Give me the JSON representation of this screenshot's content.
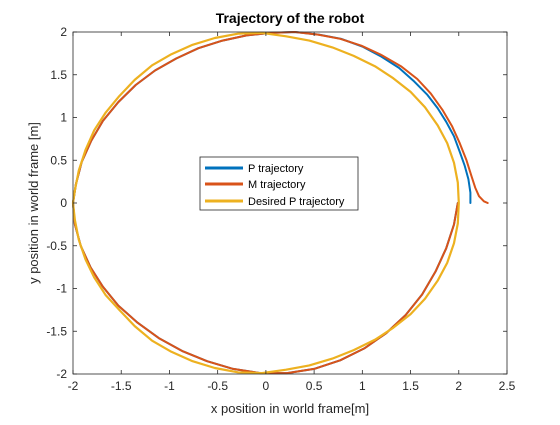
{
  "chart_data": {
    "type": "line",
    "title": "Trajectory of the robot",
    "xlabel": "x position in world frame[m]",
    "ylabel": "y position in world frame [m]",
    "xlim": [
      -2,
      2.5
    ],
    "ylim": [
      -2,
      2
    ],
    "xticks": [
      -2,
      -1.5,
      -1,
      -0.5,
      0,
      0.5,
      1,
      1.5,
      2,
      2.5
    ],
    "yticks": [
      -2,
      -1.5,
      -1,
      -0.5,
      0,
      0.5,
      1,
      1.5,
      2
    ],
    "grid": false,
    "legend_position": "center",
    "series": [
      {
        "name": "P trajectory",
        "color": "#0072BD",
        "x": [
          2.12,
          2.12,
          2.1,
          2.06,
          2.01,
          1.95,
          1.87,
          1.78,
          1.67,
          1.53,
          1.38,
          1.2,
          1.0,
          0.78,
          0.55,
          0.3,
          0.05,
          -0.2,
          -0.45,
          -0.7,
          -0.93,
          -1.15,
          -1.35,
          -1.53,
          -1.69,
          -1.81,
          -1.91,
          -1.97,
          -2.0,
          -1.98,
          -1.92,
          -1.82,
          -1.69,
          -1.53,
          -1.33,
          -1.11,
          -0.87,
          -0.61,
          -0.34,
          -0.06,
          0.22,
          0.5,
          0.77,
          1.02,
          1.25,
          1.45,
          1.62,
          1.76,
          1.87,
          1.95,
          1.99
        ],
        "y": [
          0.0,
          0.12,
          0.28,
          0.44,
          0.6,
          0.78,
          0.95,
          1.11,
          1.27,
          1.43,
          1.58,
          1.71,
          1.83,
          1.92,
          1.97,
          2.0,
          1.99,
          1.96,
          1.9,
          1.81,
          1.69,
          1.55,
          1.38,
          1.18,
          0.96,
          0.73,
          0.48,
          0.22,
          0.0,
          -0.25,
          -0.5,
          -0.75,
          -0.98,
          -1.2,
          -1.4,
          -1.58,
          -1.73,
          -1.85,
          -1.94,
          -1.99,
          -1.99,
          -1.94,
          -1.84,
          -1.7,
          -1.52,
          -1.31,
          -1.07,
          -0.8,
          -0.53,
          -0.25,
          0.0
        ]
      },
      {
        "name": "M trajectory",
        "color": "#D95319",
        "x": [
          2.3,
          2.26,
          2.21,
          2.17,
          2.13,
          2.08,
          2.01,
          1.93,
          1.83,
          1.71,
          1.57,
          1.4,
          1.2,
          0.99,
          0.77,
          0.54,
          0.3,
          0.05,
          -0.2,
          -0.45,
          -0.7,
          -0.93,
          -1.15,
          -1.35,
          -1.53,
          -1.69,
          -1.81,
          -1.91,
          -1.97,
          -2.0,
          -1.98,
          -1.92,
          -1.82,
          -1.69,
          -1.53,
          -1.33,
          -1.11,
          -0.87,
          -0.61,
          -0.34,
          -0.06,
          0.22,
          0.5,
          0.77,
          1.02,
          1.25,
          1.45,
          1.62,
          1.76,
          1.87,
          1.95,
          1.99
        ],
        "y": [
          0.0,
          0.02,
          0.08,
          0.18,
          0.32,
          0.5,
          0.7,
          0.9,
          1.09,
          1.28,
          1.45,
          1.6,
          1.73,
          1.84,
          1.92,
          1.97,
          2.0,
          1.99,
          1.96,
          1.9,
          1.81,
          1.69,
          1.55,
          1.38,
          1.18,
          0.96,
          0.73,
          0.48,
          0.22,
          0.0,
          -0.25,
          -0.5,
          -0.75,
          -0.98,
          -1.2,
          -1.4,
          -1.58,
          -1.73,
          -1.85,
          -1.94,
          -1.99,
          -1.99,
          -1.94,
          -1.84,
          -1.7,
          -1.52,
          -1.31,
          -1.07,
          -0.8,
          -0.53,
          -0.25,
          0.0
        ]
      },
      {
        "name": "Desired P trajectory",
        "color": "#EDB120",
        "x": [
          2.0,
          1.99,
          1.95,
          1.88,
          1.78,
          1.65,
          1.5,
          1.32,
          1.13,
          0.91,
          0.69,
          0.45,
          0.21,
          -0.04,
          -0.29,
          -0.53,
          -0.76,
          -0.98,
          -1.18,
          -1.36,
          -1.52,
          -1.66,
          -1.78,
          -1.87,
          -1.94,
          -1.98,
          -2.0,
          -1.98,
          -1.94,
          -1.87,
          -1.78,
          -1.66,
          -1.52,
          -1.36,
          -1.18,
          -0.98,
          -0.76,
          -0.53,
          -0.29,
          -0.04,
          0.21,
          0.45,
          0.69,
          0.91,
          1.13,
          1.32,
          1.5,
          1.65,
          1.78,
          1.88,
          1.95,
          1.99,
          2.0
        ],
        "y": [
          0.0,
          0.24,
          0.47,
          0.7,
          0.91,
          1.12,
          1.3,
          1.46,
          1.6,
          1.72,
          1.82,
          1.9,
          1.95,
          1.99,
          1.98,
          1.93,
          1.85,
          1.74,
          1.61,
          1.44,
          1.25,
          1.06,
          0.85,
          0.62,
          0.38,
          0.15,
          0.0,
          -0.2,
          -0.43,
          -0.66,
          -0.87,
          -1.08,
          -1.25,
          -1.44,
          -1.61,
          -1.74,
          -1.85,
          -1.93,
          -1.98,
          -1.99,
          -1.95,
          -1.9,
          -1.82,
          -1.72,
          -1.6,
          -1.46,
          -1.3,
          -1.12,
          -0.91,
          -0.7,
          -0.47,
          -0.24,
          0.0
        ]
      }
    ]
  }
}
